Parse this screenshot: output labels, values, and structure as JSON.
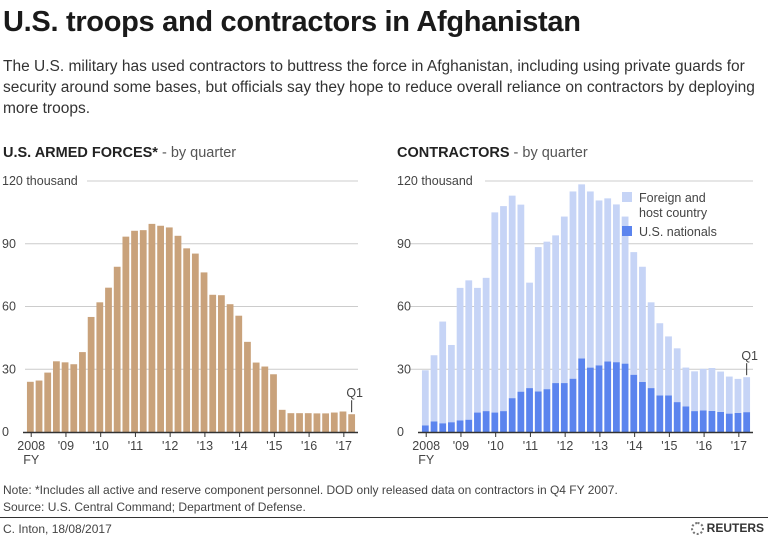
{
  "title": "U.S. troops and contractors in Afghanistan",
  "subtitle": "The U.S. military has used contractors to buttress the force in Afghanistan, including using private guards for security around some bases, but officials say they hope to reduce overall reliance on contractors by deploying more troops.",
  "left_section": {
    "title": "U.S. ARMED FORCES*",
    "sub": " - by quarter"
  },
  "right_section": {
    "title": "CONTRACTORS",
    "sub": " - by quarter"
  },
  "chart_data": [
    {
      "type": "bar",
      "title": "U.S. ARMED FORCES* - by quarter",
      "ylim": [
        0,
        120
      ],
      "yticks": [
        "0",
        "30",
        "60",
        "90",
        "120 thousand"
      ],
      "xticks": [
        "2008",
        "'09",
        "'10",
        "'11",
        "'12",
        "'13",
        "'14",
        "'15",
        "'16",
        "'17"
      ],
      "xtick_sub": "FY",
      "annotation": "Q1",
      "color": "#c9a27b",
      "grid": true,
      "values": [
        24,
        24.6,
        28.4,
        33.8,
        33.3,
        32.4,
        38.2,
        55,
        62,
        69,
        79,
        93.4,
        96.2,
        96.5,
        99.5,
        98.6,
        97.8,
        93.8,
        87.8,
        85.3,
        76.3,
        65.6,
        65.4,
        61.1,
        55.6,
        43.1,
        33.2,
        31.3,
        27.6,
        10.6,
        9,
        9,
        9,
        8.9,
        8.9,
        9.3,
        9.8,
        8.5
      ]
    },
    {
      "type": "bar",
      "stacked": true,
      "title": "CONTRACTORS - by quarter",
      "ylim": [
        0,
        120
      ],
      "yticks": [
        "0",
        "30",
        "60",
        "90",
        "120  thousand"
      ],
      "xticks": [
        "2008",
        "'09",
        "'10",
        "'11",
        "'12",
        "'13",
        "'14",
        "'15",
        "'16",
        "'17"
      ],
      "xtick_sub": "FY",
      "annotation": "Q1",
      "grid": true,
      "legend": "top-right",
      "series": [
        {
          "name": "U.S. nationals",
          "color": "#5b84ee",
          "values": [
            3.2,
            5.1,
            4.2,
            4.7,
            5.5,
            5.9,
            9.3,
            10,
            9.3,
            10,
            16.2,
            19.3,
            21,
            19.4,
            20.5,
            23.4,
            23.4,
            25.5,
            35.2,
            30.8,
            31.9,
            33.7,
            33.4,
            32.7,
            27.4,
            23.9,
            21,
            17.5,
            17.5,
            14.3,
            12.2,
            10,
            10.3,
            10.1,
            9.6,
            8.8,
            9.1,
            9.5
          ]
        },
        {
          "name": "Foreign and host country",
          "color": "#c6d4f6",
          "values": [
            26.3,
            31.6,
            48.6,
            36.9,
            63.4,
            66.6,
            59.6,
            63.7,
            95.7,
            98,
            96.8,
            89.4,
            50.4,
            69,
            70.5,
            70.6,
            79.6,
            89.5,
            83.2,
            84.2,
            78.8,
            78,
            75.4,
            70.3,
            58.6,
            55.1,
            41,
            34.5,
            28.2,
            25.7,
            18.6,
            19,
            19.9,
            20.5,
            19.3,
            17.7,
            16.3,
            16.7
          ]
        }
      ]
    }
  ],
  "note": "Note: *Includes all active and reserve component personnel. DOD only released data on contractors in Q4 FY 2007.",
  "source": "Source: U.S. Central Command; Department of Defense.",
  "credit": "C. Inton,  18/08/2017",
  "logo": "REUTERS"
}
